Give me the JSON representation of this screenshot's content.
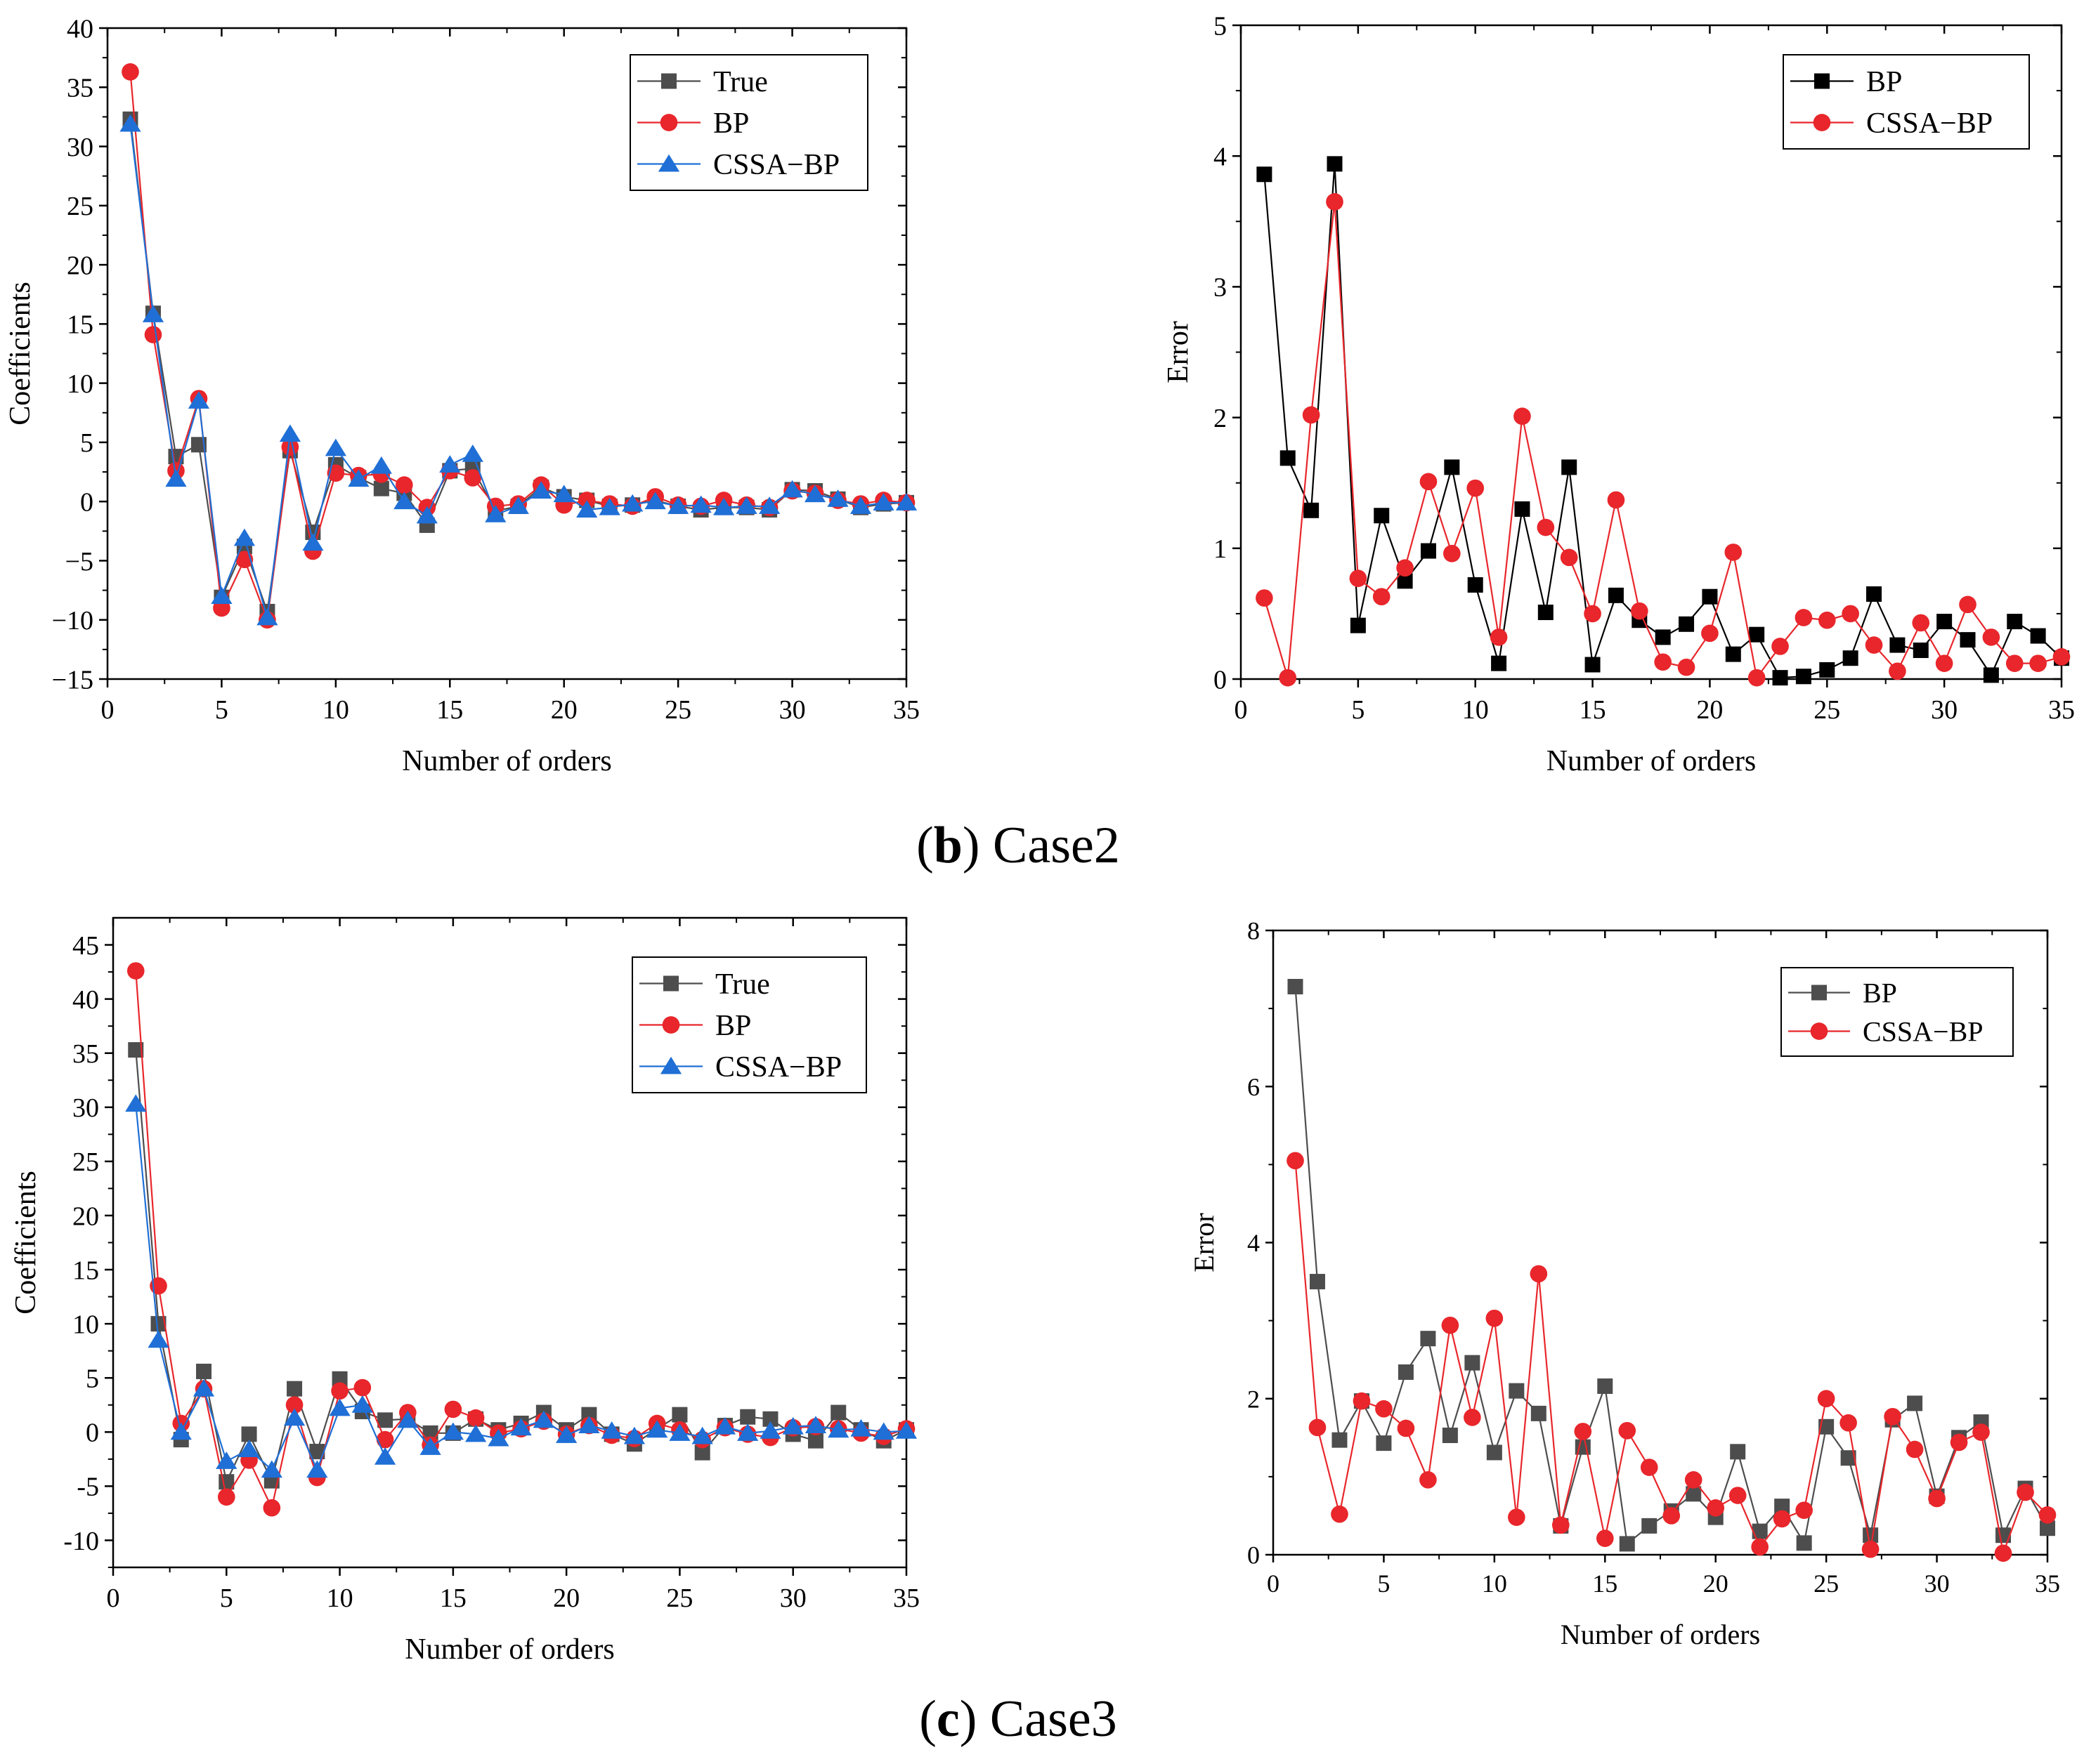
{
  "colors": {
    "true": "#4d4d4d",
    "bp": "#e8262b",
    "bp_black": "#000000",
    "cssa": "#1f6fd6"
  },
  "captions": [
    {
      "letter": "b",
      "text": " Case2",
      "open": "(",
      "close": ")"
    },
    {
      "letter": "c",
      "text": " Case3",
      "open": "(",
      "close": ")"
    }
  ],
  "chart_data": [
    {
      "id": "b-coeff",
      "type": "line",
      "xlabel": "Number of orders",
      "ylabel": "Coefficients",
      "xlim": [
        0,
        35
      ],
      "ylim": [
        -15,
        40
      ],
      "xticks": [
        0,
        5,
        10,
        15,
        20,
        25,
        30,
        35
      ],
      "xtick_labels": [
        "0",
        "5",
        "10",
        "15",
        "20",
        "25",
        "30",
        "35"
      ],
      "yticks": [
        -15,
        -10,
        -5,
        0,
        5,
        10,
        15,
        20,
        25,
        30,
        35,
        40
      ],
      "ytick_labels": [
        "−15",
        "−10",
        "−5",
        "0",
        "5",
        "10",
        "15",
        "20",
        "25",
        "30",
        "35",
        "40"
      ],
      "legend_position": "top-right",
      "x": [
        1,
        2,
        3,
        4,
        5,
        6,
        7,
        8,
        9,
        10,
        11,
        12,
        13,
        14,
        15,
        16,
        17,
        18,
        19,
        20,
        21,
        22,
        23,
        24,
        25,
        26,
        27,
        28,
        29,
        30,
        31,
        32,
        33,
        34,
        35
      ],
      "series": [
        {
          "name": "True",
          "color": "#4d4d4d",
          "marker": "square",
          "values": [
            32.3,
            15.9,
            3.8,
            4.8,
            -8.1,
            -3.8,
            -9.3,
            4.3,
            -2.6,
            3.1,
            2.0,
            1.1,
            0.7,
            -2.0,
            2.6,
            2.8,
            -0.8,
            -0.4,
            1.2,
            0.4,
            0.1,
            -0.4,
            -0.3,
            0.1,
            -0.4,
            -0.7,
            -0.5,
            -0.5,
            -0.7,
            1.0,
            0.9,
            0.2,
            -0.5,
            -0.2,
            -0.1
          ]
        },
        {
          "name": "BP",
          "color": "#e8262b",
          "marker": "circle",
          "values": [
            36.3,
            14.1,
            2.6,
            8.7,
            -9.0,
            -4.9,
            -10.0,
            4.6,
            -4.2,
            2.4,
            2.2,
            2.3,
            1.4,
            -0.5,
            2.6,
            2.0,
            -0.4,
            -0.2,
            1.4,
            -0.3,
            0.1,
            -0.2,
            -0.4,
            0.4,
            -0.3,
            -0.4,
            0.1,
            -0.3,
            -0.5,
            0.9,
            0.7,
            0.1,
            -0.2,
            0.1,
            -0.1
          ]
        },
        {
          "name": "CSSA−BP",
          "color": "#1f6fd6",
          "marker": "triangle",
          "values": [
            31.9,
            15.8,
            1.9,
            8.5,
            -8.0,
            -3.1,
            -9.8,
            5.7,
            -3.5,
            4.5,
            1.9,
            3.0,
            0.0,
            -1.2,
            3.1,
            4.0,
            -1.1,
            -0.4,
            0.9,
            0.6,
            -0.7,
            -0.5,
            -0.2,
            0.0,
            -0.4,
            -0.3,
            -0.5,
            -0.4,
            -0.4,
            1.0,
            0.6,
            0.2,
            -0.4,
            -0.1,
            -0.1
          ]
        }
      ]
    },
    {
      "id": "b-error",
      "type": "line",
      "xlabel": "Number of orders",
      "ylabel": "Error",
      "xlim": [
        0,
        35
      ],
      "ylim": [
        0,
        5
      ],
      "xticks": [
        0,
        5,
        10,
        15,
        20,
        25,
        30,
        35
      ],
      "xtick_labels": [
        "0",
        "5",
        "10",
        "15",
        "20",
        "25",
        "30",
        "35"
      ],
      "yticks": [
        0,
        1,
        2,
        3,
        4,
        5
      ],
      "ytick_labels": [
        "0",
        "1",
        "2",
        "3",
        "4",
        "5"
      ],
      "legend_position": "top-right",
      "x": [
        1,
        2,
        3,
        4,
        5,
        6,
        7,
        8,
        9,
        10,
        11,
        12,
        13,
        14,
        15,
        16,
        17,
        18,
        19,
        20,
        21,
        22,
        23,
        24,
        25,
        26,
        27,
        28,
        29,
        30,
        31,
        32,
        33,
        34,
        35
      ],
      "series": [
        {
          "name": "BP",
          "color": "#000000",
          "marker": "square",
          "values": [
            3.86,
            1.69,
            1.29,
            3.94,
            0.41,
            1.25,
            0.75,
            0.98,
            1.62,
            0.72,
            0.12,
            1.3,
            0.51,
            1.62,
            0.11,
            0.64,
            0.45,
            0.32,
            0.42,
            0.63,
            0.19,
            0.34,
            0.01,
            0.02,
            0.07,
            0.16,
            0.65,
            0.26,
            0.22,
            0.44,
            0.3,
            0.03,
            0.44,
            0.33,
            0.16
          ]
        },
        {
          "name": "CSSA−BP",
          "color": "#e8262b",
          "marker": "circle",
          "values": [
            0.62,
            0.01,
            2.02,
            3.65,
            0.77,
            0.63,
            0.85,
            1.51,
            0.96,
            1.46,
            0.32,
            2.01,
            1.16,
            0.93,
            0.5,
            1.37,
            0.52,
            0.13,
            0.09,
            0.35,
            0.97,
            0.01,
            0.25,
            0.47,
            0.45,
            0.5,
            0.26,
            0.06,
            0.43,
            0.12,
            0.57,
            0.32,
            0.12,
            0.12,
            0.17
          ]
        }
      ]
    },
    {
      "id": "c-coeff",
      "type": "line",
      "xlabel": "Number of orders",
      "ylabel": "Coefficients",
      "xlim": [
        0,
        35
      ],
      "ylim": [
        -12.5,
        47.5
      ],
      "xticks": [
        0,
        5,
        10,
        15,
        20,
        25,
        30,
        35
      ],
      "xtick_labels": [
        "0",
        "5",
        "10",
        "15",
        "20",
        "25",
        "30",
        "35"
      ],
      "yticks": [
        -10,
        -5,
        0,
        5,
        10,
        15,
        20,
        25,
        30,
        35,
        40,
        45
      ],
      "ytick_labels": [
        "-10",
        "-5",
        "0",
        "5",
        "10",
        "15",
        "20",
        "25",
        "30",
        "35",
        "40",
        "45"
      ],
      "legend_position": "top-right",
      "x": [
        1,
        2,
        3,
        4,
        5,
        6,
        7,
        8,
        9,
        10,
        11,
        12,
        13,
        14,
        15,
        16,
        17,
        18,
        19,
        20,
        21,
        22,
        23,
        24,
        25,
        26,
        27,
        28,
        29,
        30,
        31,
        32,
        33,
        34,
        35
      ],
      "series": [
        {
          "name": "True",
          "color": "#4d4d4d",
          "marker": "square",
          "values": [
            35.3,
            10.0,
            -0.7,
            5.6,
            -4.6,
            -0.2,
            -4.5,
            4.0,
            -1.8,
            4.9,
            1.9,
            1.1,
            1.2,
            -0.1,
            -0.1,
            1.2,
            0.2,
            0.8,
            1.8,
            0.2,
            1.6,
            -0.2,
            -1.1,
            0.3,
            1.6,
            -1.9,
            0.6,
            1.4,
            1.2,
            -0.2,
            -0.8,
            1.8,
            0.2,
            -0.8,
            0.2
          ]
        },
        {
          "name": "BP",
          "color": "#e8262b",
          "marker": "circle",
          "values": [
            42.6,
            13.5,
            0.8,
            4.0,
            -6.0,
            -2.6,
            -7.0,
            2.5,
            -4.2,
            3.8,
            4.1,
            -0.7,
            1.8,
            -1.2,
            2.1,
            1.3,
            -0.1,
            0.3,
            1.0,
            -0.2,
            0.6,
            -0.3,
            -0.6,
            0.8,
            0.2,
            -0.7,
            0.4,
            -0.2,
            -0.5,
            0.4,
            0.5,
            0.3,
            -0.1,
            -0.4,
            0.3
          ]
        },
        {
          "name": "CSSA−BP",
          "color": "#1f6fd6",
          "marker": "triangle",
          "values": [
            30.3,
            8.5,
            0.0,
            4.0,
            -2.7,
            -1.6,
            -3.5,
            1.3,
            -3.5,
            2.2,
            2.5,
            -2.3,
            1.1,
            -1.4,
            0.0,
            -0.2,
            -0.6,
            0.4,
            1.1,
            -0.3,
            0.6,
            0.1,
            -0.4,
            0.2,
            -0.1,
            -0.4,
            0.5,
            -0.1,
            0.1,
            0.5,
            0.6,
            0.2,
            0.3,
            0.0,
            0.1
          ]
        }
      ]
    },
    {
      "id": "c-error",
      "type": "line",
      "xlabel": "Number of orders",
      "ylabel": "Error",
      "xlim": [
        0,
        35
      ],
      "ylim": [
        0,
        8
      ],
      "xticks": [
        0,
        5,
        10,
        15,
        20,
        25,
        30,
        35
      ],
      "xtick_labels": [
        "0",
        "5",
        "10",
        "15",
        "20",
        "25",
        "30",
        "35"
      ],
      "yticks": [
        0,
        2,
        4,
        6,
        8
      ],
      "ytick_labels": [
        "0",
        "2",
        "4",
        "6",
        "8"
      ],
      "legend_position": "top-right",
      "x": [
        1,
        2,
        3,
        4,
        5,
        6,
        7,
        8,
        9,
        10,
        11,
        12,
        13,
        14,
        15,
        16,
        17,
        18,
        19,
        20,
        21,
        22,
        23,
        24,
        25,
        26,
        27,
        28,
        29,
        30,
        31,
        32,
        33,
        34,
        35
      ],
      "series": [
        {
          "name": "BP",
          "color": "#4d4d4d",
          "marker": "square",
          "values": [
            7.28,
            3.5,
            1.47,
            1.97,
            1.43,
            2.34,
            2.77,
            1.53,
            2.46,
            1.31,
            2.1,
            1.81,
            0.37,
            1.38,
            2.16,
            0.14,
            0.37,
            0.56,
            0.78,
            0.48,
            1.32,
            0.3,
            0.62,
            0.15,
            1.64,
            1.24,
            0.25,
            1.73,
            1.94,
            0.75,
            1.5,
            1.7,
            0.25,
            0.85,
            0.34
          ]
        },
        {
          "name": "CSSA−BP",
          "color": "#e8262b",
          "marker": "circle",
          "values": [
            5.05,
            1.63,
            0.52,
            1.97,
            1.87,
            1.62,
            0.96,
            2.94,
            1.76,
            3.03,
            0.48,
            3.6,
            0.38,
            1.58,
            0.21,
            1.59,
            1.12,
            0.5,
            0.96,
            0.6,
            0.76,
            0.1,
            0.46,
            0.57,
            2.0,
            1.69,
            0.07,
            1.77,
            1.35,
            0.72,
            1.44,
            1.57,
            0.02,
            0.8,
            0.51
          ]
        }
      ]
    }
  ]
}
